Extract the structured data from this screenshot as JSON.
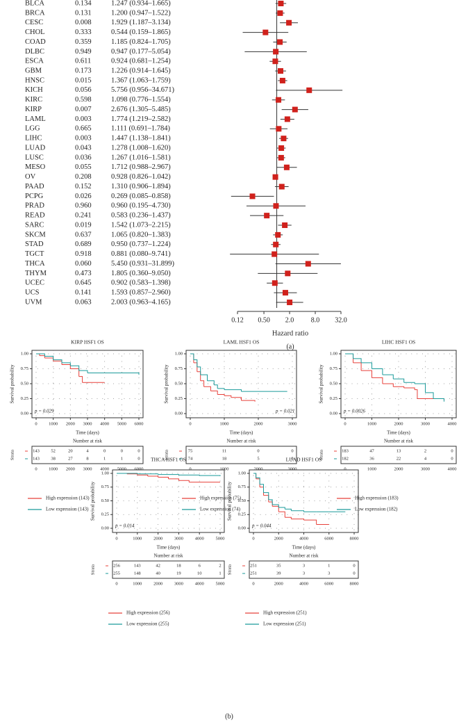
{
  "panel_labels": [
    "(a)",
    "(b)"
  ],
  "chart_data": [
    {
      "type": "forest",
      "categories": [
        "BLCA",
        "BRCA",
        "CESC",
        "CHOL",
        "COAD",
        "DLBC",
        "ESCA",
        "GBM",
        "HNSC",
        "KICH",
        "KIRC",
        "KIRP",
        "LAML",
        "LGG",
        "LIHC",
        "LUAD",
        "LUSC",
        "MESO",
        "OV",
        "PAAD",
        "PCPG",
        "PRAD",
        "READ",
        "SARC",
        "SKCM",
        "STAD",
        "TGCT",
        "THCA",
        "THYM",
        "UCEC",
        "UCS",
        "UVM"
      ],
      "p_values": [
        "0.134",
        "0.131",
        "0.008",
        "0.333",
        "0.359",
        "0.949",
        "0.611",
        "0.173",
        "0.015",
        "0.056",
        "0.598",
        "0.007",
        "0.003",
        "0.665",
        "0.003",
        "0.043",
        "0.036",
        "0.055",
        "0.208",
        "0.152",
        "0.026",
        "0.960",
        "0.241",
        "0.019",
        "0.637",
        "0.689",
        "0.918",
        "0.060",
        "0.473",
        "0.645",
        "0.141",
        "0.063"
      ],
      "values": [
        1.247,
        1.2,
        1.929,
        0.544,
        1.185,
        0.947,
        0.924,
        1.226,
        1.367,
        5.756,
        1.098,
        2.676,
        1.774,
        1.111,
        1.447,
        1.278,
        1.267,
        1.712,
        0.928,
        1.31,
        0.269,
        0.96,
        0.583,
        1.542,
        1.065,
        0.95,
        0.881,
        5.45,
        1.805,
        0.902,
        1.593,
        2.003
      ],
      "lower": [
        0.934,
        0.947,
        1.187,
        0.159,
        0.824,
        0.177,
        0.681,
        0.914,
        1.063,
        0.956,
        0.776,
        1.305,
        1.219,
        0.691,
        1.138,
        1.008,
        1.016,
        0.988,
        0.826,
        0.906,
        0.085,
        0.195,
        0.236,
        1.073,
        0.82,
        0.737,
        0.08,
        0.931,
        0.36,
        0.583,
        0.857,
        0.963
      ],
      "upper": [
        1.665,
        1.522,
        3.134,
        1.865,
        1.705,
        5.054,
        1.254,
        1.645,
        1.759,
        34.671,
        1.554,
        5.485,
        2.582,
        1.784,
        1.841,
        1.62,
        1.581,
        2.967,
        1.042,
        1.894,
        0.858,
        4.73,
        1.437,
        2.215,
        1.383,
        1.224,
        9.741,
        31.899,
        9.05,
        1.398,
        2.96,
        4.165
      ],
      "value_labels": [
        "1.247 (0.934–1.665)",
        "1.200 (0.947–1.522)",
        "1.929 (1.187–3.134)",
        "0.544 (0.159–1.865)",
        "1.185 (0.824–1.705)",
        "0.947 (0.177–5.054)",
        "0.924 (0.681–1.254)",
        "1.226 (0.914–1.645)",
        "1.367 (1.063–1.759)",
        "5.756 (0.956–34.671)",
        "1.098 (0.776–1.554)",
        "2.676 (1.305–5.485)",
        "1.774 (1.219–2.582)",
        "1.111 (0.691–1.784)",
        "1.447 (1.138–1.841)",
        "1.278 (1.008–1.620)",
        "1.267 (1.016–1.581)",
        "1.712 (0.988–2.967)",
        "0.928 (0.826–1.042)",
        "1.310 (0.906–1.894)",
        "0.269 (0.085–0.858)",
        "0.960 (0.195–4.730)",
        "0.583 (0.236–1.437)",
        "1.542 (1.073–2.215)",
        "1.065 (0.820–1.383)",
        "0.950 (0.737–1.224)",
        "0.881 (0.080–9.741)",
        "5.450 (0.931–31.899)",
        "1.805 (0.360–9.050)",
        "0.902 (0.583–1.398)",
        "1.593 (0.857–2.960)",
        "2.003 (0.963–4.165)"
      ],
      "color": "#d0211c",
      "xlabel": "Hazard ratio",
      "log_x": true,
      "xlim": [
        0.12,
        32
      ],
      "xticks": [
        0.12,
        {
          "value": 0.5,
          "label": "0.50"
        },
        {
          "value": 2,
          "label": "2.0"
        },
        {
          "value": 8,
          "label": "8.0"
        },
        {
          "value": 32,
          "label": "32.0"
        }
      ],
      "reference_line": 1
    },
    {
      "type": "km",
      "title": "KIRP HSF1 OS",
      "xlabel": "Time (days)",
      "ylabel": "Survival probability",
      "annotation": "p = 0.029",
      "xlim": [
        0,
        6000
      ],
      "xticks": [
        0,
        1000,
        2000,
        3000,
        4000,
        5000,
        6000
      ],
      "ylim": [
        0,
        1
      ],
      "yticks": [
        {
          "value": 0,
          "label": "0.00"
        },
        0.25,
        {
          "value": 0.5,
          "label": "0.50"
        },
        0.75,
        {
          "value": 1,
          "label": "1.00"
        }
      ],
      "risk_title": "Number at risk",
      "strata_label": "Strata",
      "series": [
        {
          "name": "High expression (143)",
          "color": "#e8403a",
          "x": [
            0,
            200,
            500,
            1000,
            1500,
            2000,
            2500,
            2700,
            3000,
            4000
          ],
          "y": [
            1,
            0.97,
            0.93,
            0.88,
            0.82,
            0.75,
            0.62,
            0.52,
            0.52,
            0.52
          ],
          "risk": [
            143,
            52,
            20,
            4,
            0,
            0,
            0
          ]
        },
        {
          "name": "Low expression (143)",
          "color": "#1a9a9a",
          "x": [
            0,
            500,
            1000,
            1500,
            2000,
            2500,
            3000,
            4000,
            5000,
            6000
          ],
          "y": [
            1,
            0.96,
            0.9,
            0.85,
            0.8,
            0.72,
            0.68,
            0.68,
            0.68,
            0.65
          ],
          "risk": [
            143,
            38,
            27,
            8,
            1,
            1,
            0
          ]
        }
      ]
    },
    {
      "type": "km",
      "title": "LAML HSF1 OS",
      "xlabel": "Time (days)",
      "ylabel": "Survival probability",
      "annotation": "p = 0.021",
      "xlim": [
        0,
        3000
      ],
      "xticks": [
        0,
        1000,
        2000,
        3000
      ],
      "ylim": [
        0,
        1
      ],
      "yticks": [
        {
          "value": 0,
          "label": "0.00"
        },
        0.25,
        {
          "value": 0.5,
          "label": "0.50"
        },
        0.75,
        {
          "value": 1,
          "label": "1.00"
        }
      ],
      "risk_title": "Number at risk",
      "strata_label": "Strata",
      "series": [
        {
          "name": "High expression (75)",
          "color": "#e8403a",
          "x": [
            0,
            100,
            200,
            300,
            400,
            600,
            800,
            1000,
            1200,
            1500,
            1900
          ],
          "y": [
            1,
            0.85,
            0.7,
            0.55,
            0.45,
            0.38,
            0.32,
            0.3,
            0.27,
            0.22,
            0.2
          ],
          "risk": [
            75,
            11,
            0,
            0
          ]
        },
        {
          "name": "Low expression (74)",
          "color": "#1a9a9a",
          "x": [
            0,
            100,
            200,
            300,
            500,
            700,
            800,
            1000,
            1500,
            2000,
            2500,
            2850
          ],
          "y": [
            1,
            0.9,
            0.78,
            0.65,
            0.55,
            0.48,
            0.42,
            0.4,
            0.37,
            0.37,
            0.37,
            0.37
          ],
          "risk": [
            74,
            18,
            5,
            0
          ]
        }
      ]
    },
    {
      "type": "km",
      "title": "LIHC HSF1 OS",
      "xlabel": "Time (days)",
      "ylabel": "Survival probability",
      "annotation": "p = 0.0026",
      "xlim": [
        0,
        4000
      ],
      "xticks": [
        0,
        1000,
        2000,
        3000,
        4000
      ],
      "ylim": [
        0,
        1
      ],
      "yticks": [
        {
          "value": 0,
          "label": "0.00"
        },
        0.25,
        {
          "value": 0.5,
          "label": "0.50"
        },
        0.75,
        {
          "value": 1,
          "label": "1.00"
        }
      ],
      "risk_title": "Number at risk",
      "strata_label": "Strata",
      "series": [
        {
          "name": "High expression (183)",
          "color": "#e8403a",
          "x": [
            0,
            300,
            600,
            1000,
            1400,
            1800,
            2200,
            2600,
            2700,
            3200,
            3700
          ],
          "y": [
            1,
            0.85,
            0.72,
            0.6,
            0.5,
            0.45,
            0.43,
            0.4,
            0.25,
            0.25,
            0.22
          ],
          "risk": [
            183,
            47,
            13,
            2,
            0
          ]
        },
        {
          "name": "Low expression (182)",
          "color": "#1a9a9a",
          "x": [
            0,
            300,
            600,
            1000,
            1400,
            1800,
            2200,
            2600,
            3000,
            3300,
            3700
          ],
          "y": [
            1,
            0.92,
            0.85,
            0.75,
            0.65,
            0.58,
            0.52,
            0.5,
            0.35,
            0.25,
            0.2
          ],
          "risk": [
            182,
            36,
            22,
            4,
            0
          ]
        }
      ]
    },
    {
      "type": "km",
      "title": "THCA HSF1 OS",
      "xlabel": "Time (days)",
      "ylabel": "Survival probability",
      "annotation": "p = 0.014",
      "xlim": [
        0,
        5000
      ],
      "xticks": [
        0,
        1000,
        2000,
        3000,
        4000,
        5000
      ],
      "ylim": [
        0,
        1
      ],
      "yticks": [
        {
          "value": 0,
          "label": "0.00"
        },
        0.25,
        {
          "value": 0.5,
          "label": "0.50"
        },
        0.75,
        {
          "value": 1,
          "label": "1.00"
        }
      ],
      "risk_title": "Number at risk",
      "strata_label": "Strata",
      "series": [
        {
          "name": "High expression (256)",
          "color": "#e8403a",
          "x": [
            0,
            500,
            1000,
            1500,
            2000,
            2500,
            3000,
            3500,
            5000
          ],
          "y": [
            1,
            0.99,
            0.97,
            0.95,
            0.93,
            0.9,
            0.87,
            0.84,
            0.84
          ],
          "risk": [
            256,
            143,
            42,
            18,
            6,
            2
          ]
        },
        {
          "name": "Low expression (255)",
          "color": "#1a9a9a",
          "x": [
            0,
            1000,
            2000,
            3000,
            4000,
            5000
          ],
          "y": [
            1,
            0.99,
            0.98,
            0.97,
            0.96,
            0.95
          ],
          "risk": [
            255,
            148,
            40,
            19,
            10,
            1
          ]
        }
      ]
    },
    {
      "type": "km",
      "title": "LUAD HSF1 OS",
      "xlabel": "Time (days)",
      "ylabel": "Survival probability",
      "annotation": "p = 0.044",
      "xlim": [
        0,
        8000
      ],
      "xticks": [
        0,
        2000,
        4000,
        6000,
        8000
      ],
      "ylim": [
        0,
        1
      ],
      "yticks": [
        {
          "value": 0,
          "label": "0.00"
        },
        0.25,
        {
          "value": 0.5,
          "label": "0.50"
        },
        0.75,
        {
          "value": 1,
          "label": "1.00"
        }
      ],
      "risk_title": "Number at risk",
      "strata_label": "Strata",
      "series": [
        {
          "name": "High expression (251)",
          "color": "#e8403a",
          "x": [
            0,
            200,
            500,
            800,
            1200,
            1500,
            2000,
            2500,
            3000,
            4000,
            5000,
            6000
          ],
          "y": [
            1,
            0.9,
            0.75,
            0.6,
            0.48,
            0.4,
            0.3,
            0.2,
            0.17,
            0.15,
            0.07,
            0.07
          ],
          "risk": [
            251,
            35,
            3,
            1,
            0
          ]
        },
        {
          "name": "Low expression (251)",
          "color": "#1a9a9a",
          "x": [
            0,
            200,
            500,
            800,
            1200,
            1500,
            2000,
            2500,
            3000,
            4000,
            5000,
            6000,
            7300
          ],
          "y": [
            1,
            0.92,
            0.8,
            0.65,
            0.52,
            0.43,
            0.38,
            0.35,
            0.32,
            0.3,
            0.3,
            0.3,
            0.3
          ],
          "risk": [
            251,
            39,
            3,
            3,
            0
          ]
        }
      ]
    }
  ]
}
